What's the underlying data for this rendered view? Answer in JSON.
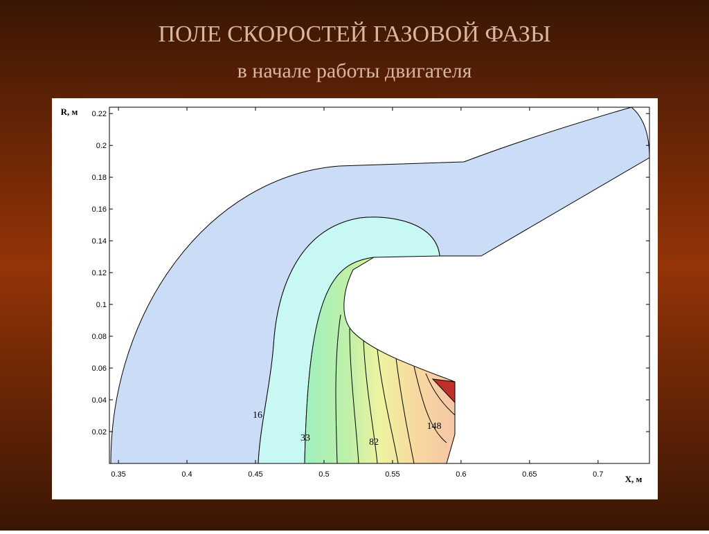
{
  "chart_data": {
    "type": "contour",
    "title": "ПОЛЕ СКОРОСТЕЙ ГАЗОВОЙ ФАЗЫ",
    "subtitle": "в начале работы двигателя",
    "xlabel": "X, м",
    "ylabel": "R, м",
    "xlim": [
      0.3434,
      0.7375
    ],
    "ylim": [
      0,
      0.224
    ],
    "xticks": [
      0.35,
      0.4,
      0.45,
      0.5,
      0.55,
      0.6,
      0.65,
      0.7
    ],
    "yticks": [
      0.02,
      0.04,
      0.06,
      0.08,
      0.1,
      0.12,
      0.14,
      0.16,
      0.18,
      0.2,
      0.22
    ],
    "contour_levels": [
      16,
      33,
      82,
      148
    ]
  }
}
